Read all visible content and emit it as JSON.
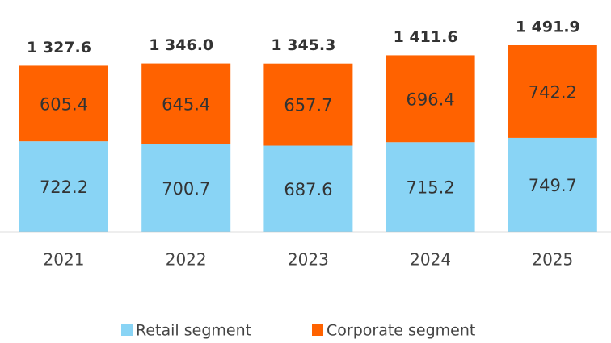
{
  "chart_data": {
    "type": "stacked_bar",
    "categories": [
      "2021",
      "2022",
      "2023",
      "2024",
      "2025"
    ],
    "series": [
      {
        "name": "Retail segment",
        "color": "#89d4f5",
        "values": [
          722.2,
          700.7,
          687.6,
          715.2,
          749.7
        ]
      },
      {
        "name": "Corporate segment",
        "color": "#ff6200",
        "values": [
          605.4,
          645.4,
          657.7,
          696.4,
          742.2
        ]
      }
    ],
    "totals": [
      1327.6,
      1346.0,
      1345.3,
      1411.6,
      1491.9
    ],
    "total_labels": [
      "1 327.6",
      "1 346.0",
      "1 345.3",
      "1 411.6",
      "1 491.9"
    ],
    "legend": "bottom"
  }
}
